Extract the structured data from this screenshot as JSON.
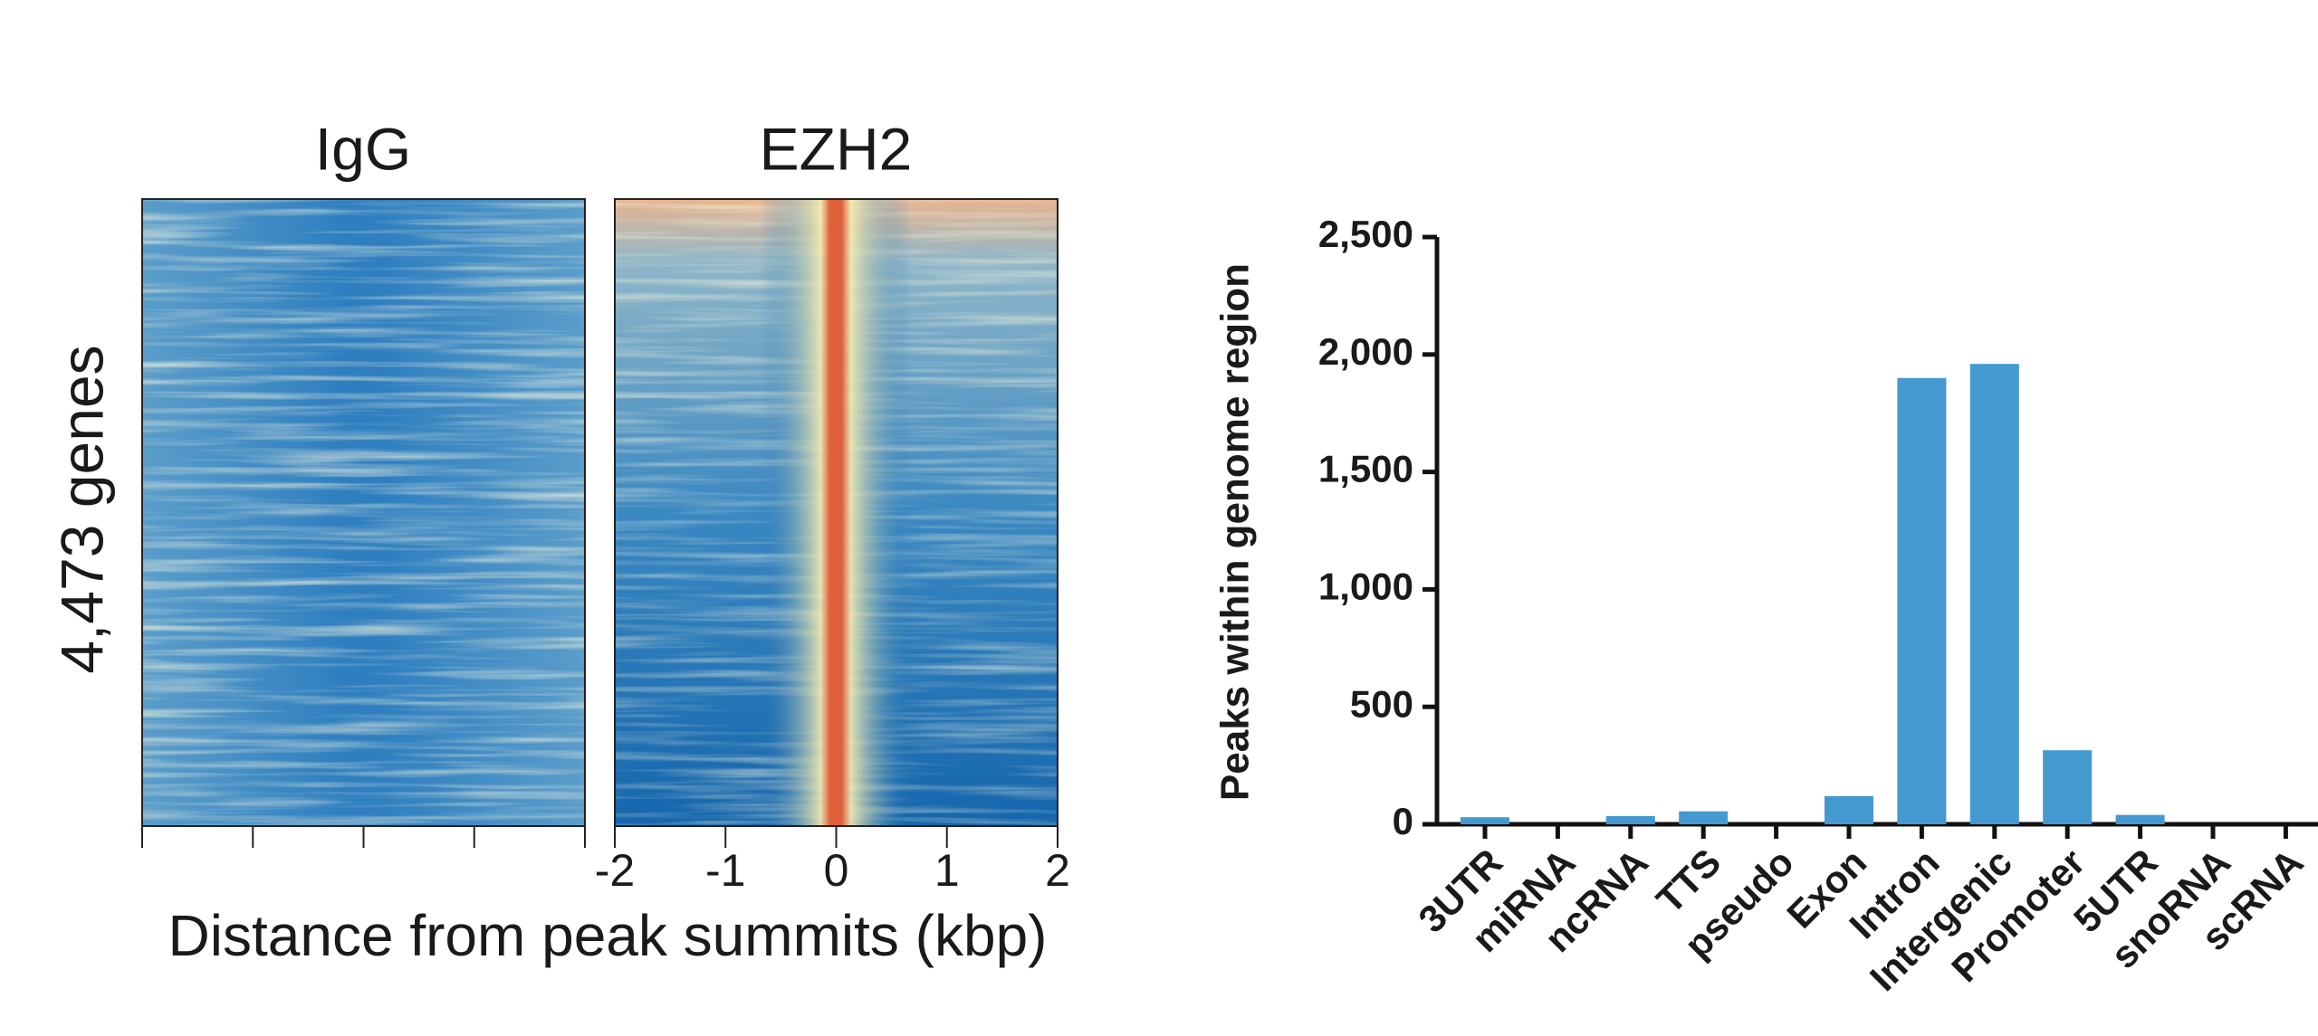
{
  "chart_data": [
    {
      "type": "heatmap",
      "panels": [
        "IgG",
        "EZH2"
      ],
      "ylabel": "4,473 genes",
      "xlabel": "Distance from peak summits (kbp)",
      "xlim": [
        -2,
        2
      ],
      "xticks": [
        -2,
        -1,
        0,
        1,
        2
      ]
    },
    {
      "type": "bar",
      "ylabel": "Peaks within genome region",
      "categories": [
        "3UTR",
        "miRNA",
        "ncRNA",
        "TTS",
        "pseudo",
        "Exon",
        "Intron",
        "Intergenic",
        "Promoter",
        "5UTR",
        "snoRNA",
        "scRNA"
      ],
      "values": [
        30,
        0,
        35,
        55,
        0,
        120,
        1900,
        1960,
        315,
        40,
        0,
        0
      ],
      "color": "#4499d0",
      "ylim": [
        0,
        2500
      ],
      "yticks": [
        0,
        500,
        {
          "value": 1000,
          "label": "1,000"
        },
        {
          "value": 1500,
          "label": "1,500"
        },
        {
          "value": 2000,
          "label": "2,000"
        },
        {
          "value": 2500,
          "label": "2,500"
        }
      ]
    }
  ]
}
